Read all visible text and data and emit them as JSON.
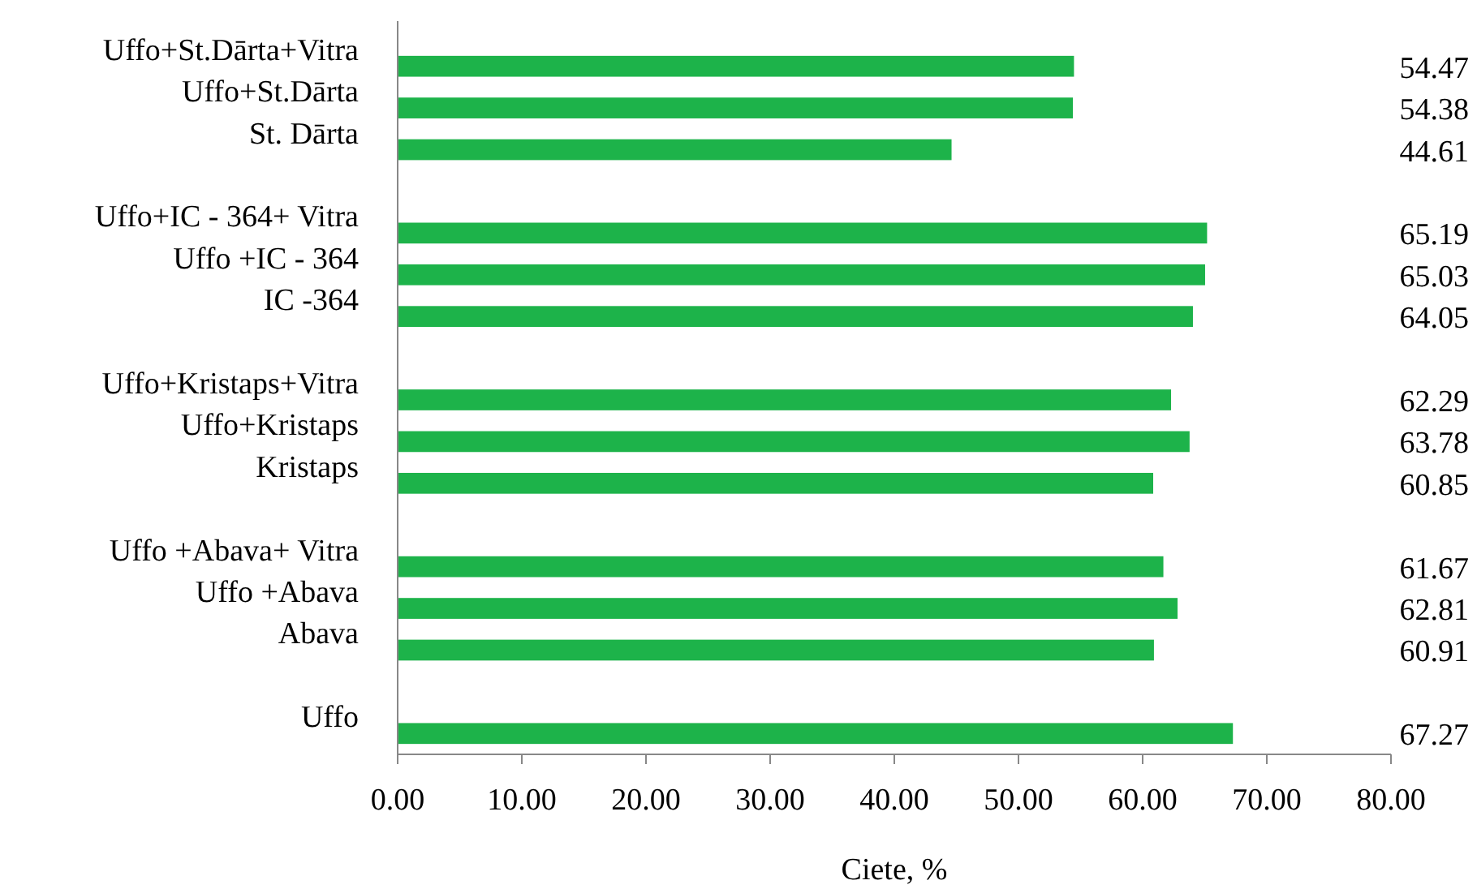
{
  "chart_data": {
    "type": "bar",
    "orientation": "horizontal",
    "xlabel": "Ciete, %",
    "categories": [
      "Uffo+St.Dārta+Vitra",
      "Uffo+St.Dārta",
      "St. Dārta",
      null,
      "Uffo+IC - 364+ Vitra",
      "Uffo +IC - 364",
      "IC -364",
      null,
      "Uffo+Kristaps+Vitra",
      "Uffo+Kristaps",
      "Kristaps",
      null,
      "Uffo +Abava+ Vitra",
      "Uffo +Abava",
      "Abava",
      null,
      "Uffo"
    ],
    "values": [
      54.47,
      54.38,
      44.61,
      null,
      65.19,
      65.03,
      64.05,
      null,
      62.29,
      63.78,
      60.85,
      null,
      61.67,
      62.81,
      60.91,
      null,
      67.27
    ],
    "color": "#1db34a",
    "data_labels": true,
    "xlim": [
      0,
      80
    ],
    "xticks": [
      {
        "value": 0,
        "label": "0.00"
      },
      {
        "value": 10,
        "label": "10.00"
      },
      {
        "value": 20,
        "label": "20.00"
      },
      {
        "value": 30,
        "label": "30.00"
      },
      {
        "value": 40,
        "label": "40.00"
      },
      {
        "value": 50,
        "label": "50.00"
      },
      {
        "value": 60,
        "label": "60.00"
      },
      {
        "value": 70,
        "label": "70.00"
      },
      {
        "value": 80,
        "label": "80.00"
      }
    ],
    "grid": false
  }
}
